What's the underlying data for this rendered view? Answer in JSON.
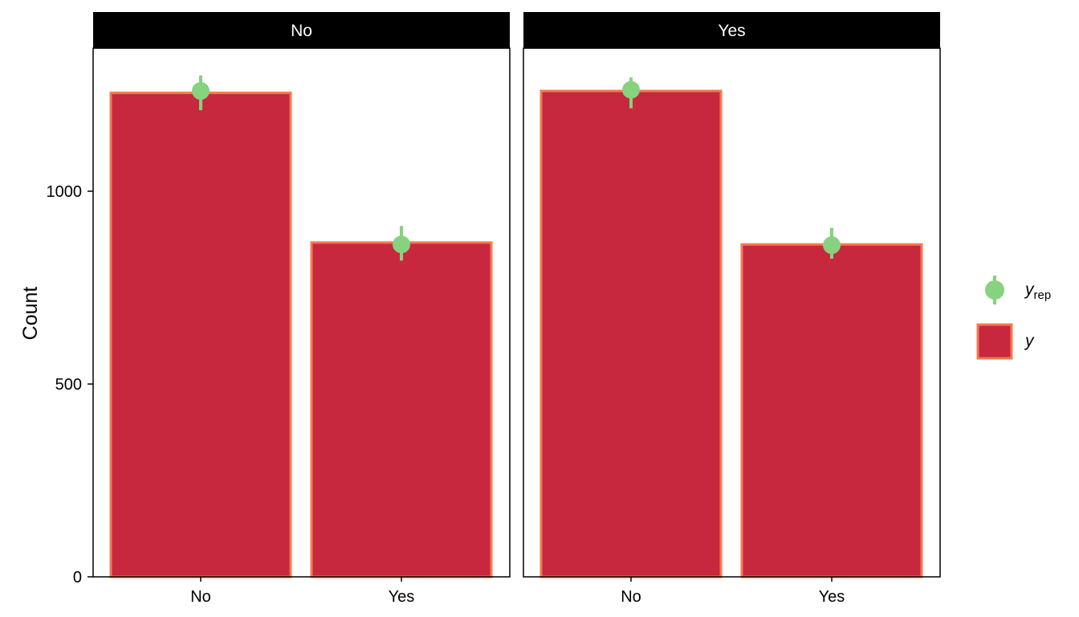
{
  "colors": {
    "bar_fill": "#C8283E",
    "bar_outline": "#F47A50",
    "point": "#87D27E",
    "strip_bg": "#000000",
    "strip_text": "#FFFFFF",
    "panel_border": "#000000"
  },
  "chart_data": {
    "type": "bar",
    "facets": [
      "No",
      "Yes"
    ],
    "categories": [
      "No",
      "Yes"
    ],
    "ylabel": "Count",
    "xlabel": "",
    "ylim": [
      0,
      1250
    ],
    "yticks": [
      0,
      500,
      1000
    ],
    "ytick_labels": [
      "0",
      "500",
      "1000"
    ],
    "grid": false,
    "legend_position": "right",
    "legend": {
      "point_label_main": "y",
      "point_label_sub": "rep",
      "bar_label": "y"
    },
    "panels": [
      {
        "facet": "No",
        "observed": [
          1255,
          867
        ],
        "replicated": [
          {
            "mid": 1260,
            "low": 1210,
            "high": 1300
          },
          {
            "mid": 862,
            "low": 820,
            "high": 910
          }
        ]
      },
      {
        "facet": "Yes",
        "observed": [
          1260,
          862
        ],
        "replicated": [
          {
            "mid": 1263,
            "low": 1215,
            "high": 1295
          },
          {
            "mid": 860,
            "low": 825,
            "high": 905
          }
        ]
      }
    ]
  }
}
